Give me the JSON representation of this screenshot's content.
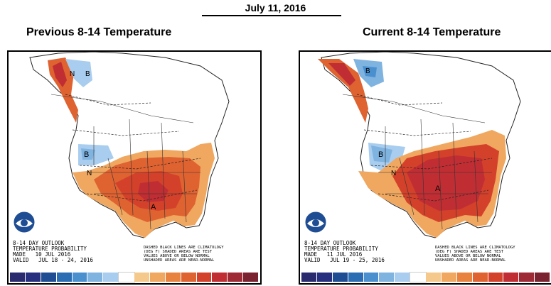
{
  "date": "July 11, 2016",
  "panels": [
    {
      "title": "Previous 8-14 Temperature",
      "info": [
        "8-14 DAY OUTLOOK",
        "TEMPERATURE PROBABILITY",
        "MADE   10 JUL 2016",
        "VALID   JUL 18 - 24, 2016"
      ],
      "legend_note": [
        "DASHED BLACK LINES ARE CLIMATOLOGY",
        "(DEG F) SHADED AREAS ARE TEST",
        "VALUES ABOVE OR BELOW NORMAL",
        "UNSHADED AREAS ARE NEAR-NORMAL"
      ],
      "labels": [
        "N",
        "B",
        "B",
        "N",
        "A"
      ]
    },
    {
      "title": "Current 8-14 Temperature",
      "info": [
        "8-14 DAY OUTLOOK",
        "TEMPERATURE PROBABILITY",
        "MADE   11 JUL 2016",
        "VALID   JUL 19 - 25, 2016"
      ],
      "legend_note": [
        "DASHED BLACK LINES ARE CLIMATOLOGY",
        "(DEG F) SHADED AREAS ARE TEST",
        "VALUES ABOVE OR BELOW NORMAL",
        "UNSHADED AREAS ARE NEAR-NORMAL"
      ],
      "labels": [
        "B",
        "B",
        "N",
        "A"
      ]
    }
  ],
  "colors": {
    "below": [
      "#2a2a6e",
      "#27307f",
      "#1f4d93",
      "#2a6db3",
      "#4a90cf",
      "#7fb3e0",
      "#a9cdee"
    ],
    "near": "#ffffff",
    "above": [
      "#f5c98b",
      "#f0a75f",
      "#e7833f",
      "#df6231",
      "#d4412b",
      "#c02e33",
      "#9e2a36",
      "#7a2230"
    ]
  }
}
